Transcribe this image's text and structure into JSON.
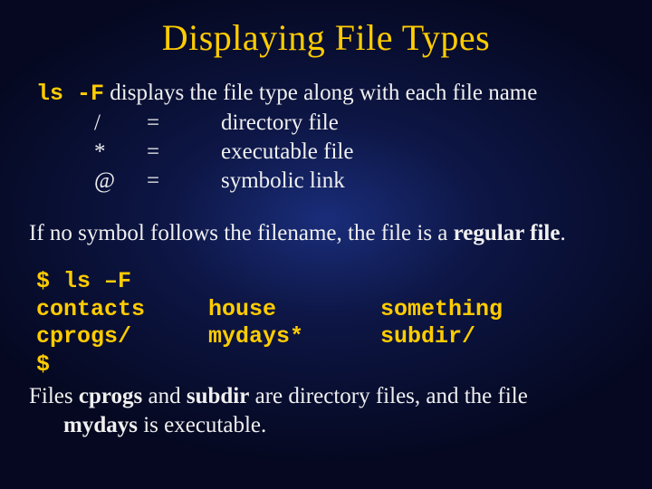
{
  "colors": {
    "accent": "#ffcc00",
    "text": "#f0f0f0",
    "bg_center": "#1a2d7a",
    "bg_outer": "#050820"
  },
  "typography": {
    "title_fontsize": 40,
    "body_fontsize": 25,
    "title_font": "Times New Roman",
    "body_font": "Times New Roman",
    "mono_font": "Courier New"
  },
  "title": "Displaying File Types",
  "cmd": {
    "command": "ls -F",
    "desc_rest": " displays the file type along with each file name"
  },
  "defs": [
    {
      "sym": "/",
      "eq": "=",
      "desc": "directory file"
    },
    {
      "sym": "*",
      "eq": "=",
      "desc": "executable file"
    },
    {
      "sym": "@",
      "eq": "=",
      "desc": "symbolic link"
    }
  ],
  "para": {
    "pre": "If no symbol follows the filename, the file is a ",
    "strong": "regular file",
    "post": "."
  },
  "code": {
    "line1": "$ ls –F",
    "row1": {
      "c1": "contacts",
      "c2": "house",
      "c3": "something"
    },
    "row2": {
      "c1": "cprogs/",
      "c2": "mydays*",
      "c3": "subdir/"
    },
    "line4": "$"
  },
  "explain": {
    "t1": "Files ",
    "b1": "cprogs",
    "t2": " and ",
    "b2": "subdir",
    "t3": " are directory files, and the file ",
    "b3": "mydays",
    "t4": " is executable."
  }
}
